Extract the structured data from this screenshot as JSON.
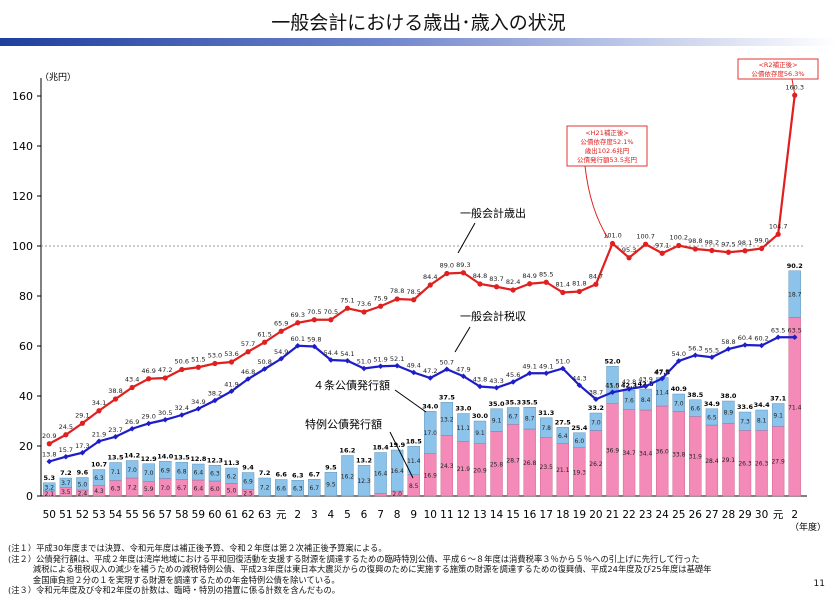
{
  "page": {
    "title": "一般会計における歳出･歳入の状況",
    "page_number": "11",
    "notes": [
      "(注１）平成30年度までは決算、令和元年度は補正後予算、令和２年度は第２次補正後予算案による。",
      "(注２）公債発行額は、平成２年度は湾岸地域における平和回復活動を支援する財源を調達するための臨時特別公債、平成６～８年度は消費税率３％から５％への引上げに先行して行った",
      "　　　減税による租税収入の減少を補うための減税特例公債、平成23年度は東日本大震災からの復興のために実施する施策の財源を調達するための復興債、平成24年度及び25年度は基礎年",
      "　　　金国庫負担２分の１を実現する財源を調達するための年金特例公債を除いている。",
      "(注３）令和元年度及び令和2年度の計数は、臨時・特別の措置に係る計数を含んだもの。"
    ]
  },
  "chart_data": {
    "type": "bar",
    "ylabel": "（兆円）",
    "xlabel": "（年度）",
    "ylim": [
      0,
      160
    ],
    "yticks": [
      0,
      20,
      40,
      60,
      80,
      100,
      120,
      140,
      160
    ],
    "categories": [
      "50",
      "51",
      "52",
      "53",
      "54",
      "55",
      "56",
      "57",
      "58",
      "59",
      "60",
      "61",
      "62",
      "63",
      "元",
      "2",
      "3",
      "4",
      "5",
      "6",
      "7",
      "8",
      "9",
      "10",
      "11",
      "12",
      "13",
      "14",
      "15",
      "16",
      "17",
      "18",
      "19",
      "20",
      "21",
      "22",
      "23",
      "24",
      "25",
      "26",
      "27",
      "28",
      "29",
      "30",
      "元",
      "2"
    ],
    "series": [
      {
        "name": "一般会計歳出",
        "kind": "line",
        "color": "#e0201f",
        "values": [
          20.9,
          24.5,
          29.1,
          34.1,
          38.8,
          43.4,
          46.9,
          47.2,
          50.6,
          51.5,
          53.0,
          53.6,
          57.7,
          61.5,
          65.9,
          69.3,
          70.5,
          70.5,
          75.1,
          73.6,
          75.9,
          78.8,
          78.5,
          84.4,
          89.0,
          89.3,
          84.8,
          83.7,
          82.4,
          84.9,
          85.5,
          81.4,
          81.8,
          84.7,
          101.0,
          95.3,
          100.7,
          97.1,
          100.2,
          98.8,
          98.2,
          97.5,
          98.1,
          99.0,
          104.7,
          160.3
        ]
      },
      {
        "name": "一般会計税収",
        "kind": "line",
        "color": "#1d1dc9",
        "values": [
          13.8,
          15.7,
          17.3,
          21.9,
          23.7,
          26.9,
          29.0,
          30.5,
          32.4,
          34.9,
          38.2,
          41.9,
          46.8,
          50.8,
          54.9,
          60.1,
          59.8,
          54.4,
          54.1,
          51.0,
          51.9,
          52.1,
          49.4,
          47.2,
          50.7,
          47.9,
          43.8,
          43.3,
          45.6,
          49.1,
          49.1,
          51.0,
          44.3,
          38.7,
          41.5,
          42.8,
          43.9,
          47.0,
          54.0,
          56.3,
          55.5,
          58.8,
          60.4,
          60.2,
          63.5,
          63.5
        ]
      },
      {
        "name": "特例公債発行額",
        "kind": "bar-bottom",
        "color": "#f48ab7",
        "values": [
          2.1,
          3.5,
          2.4,
          4.3,
          6.3,
          7.2,
          5.9,
          7.0,
          6.7,
          6.4,
          6.0,
          5.0,
          2.5,
          0.0,
          0.0,
          0.0,
          0.0,
          0.0,
          0.0,
          0.0,
          1.0,
          2.0,
          8.5,
          16.9,
          24.3,
          21.9,
          20.9,
          25.8,
          28.7,
          26.8,
          23.5,
          21.1,
          19.3,
          26.2,
          36.9,
          34.7,
          34.4,
          36.0,
          33.8,
          31.9,
          28.4,
          29.1,
          26.3,
          26.3,
          27.9,
          71.4
        ]
      },
      {
        "name": "４条公債発行額",
        "kind": "bar-top",
        "color": "#8cc3ea",
        "values": [
          3.2,
          3.7,
          5.0,
          6.3,
          7.1,
          7.0,
          7.0,
          6.9,
          6.8,
          6.4,
          6.3,
          6.2,
          6.9,
          7.2,
          6.6,
          6.3,
          6.7,
          9.5,
          16.2,
          12.3,
          16.4,
          16.4,
          11.4,
          17.0,
          13.2,
          11.1,
          9.1,
          9.1,
          6.7,
          8.7,
          7.8,
          6.4,
          6.0,
          7.0,
          15.0,
          7.6,
          8.4,
          11.4,
          7.0,
          6.6,
          6.5,
          8.9,
          7.3,
          8.1,
          9.1,
          18.7
        ]
      }
    ],
    "bond_totals": [
      5.3,
      7.2,
      9.6,
      10.7,
      13.5,
      14.2,
      12.9,
      14.0,
      13.5,
      12.8,
      12.3,
      11.3,
      9.4,
      7.2,
      6.6,
      6.3,
      6.7,
      9.5,
      16.2,
      13.2,
      18.4,
      19.9,
      18.5,
      34.0,
      37.5,
      33.0,
      30.0,
      35.0,
      35.3,
      35.5,
      31.3,
      27.5,
      25.4,
      33.2,
      52.0,
      42.3,
      42.8,
      47.5,
      40.9,
      38.5,
      34.9,
      38.0,
      33.6,
      34.4,
      37.1,
      90.2
    ],
    "annotations": [
      {
        "text": "一般会計歳出",
        "points_to": "spending line"
      },
      {
        "text": "一般会計税収",
        "points_to": "tax line"
      },
      {
        "text": "４条公債発行額",
        "points_to": "construction bond bars"
      },
      {
        "text": "特例公債発行額",
        "points_to": "deficit bond bars"
      },
      {
        "lines": [
          "<H21補正後>",
          "公債依存度52.1%",
          "歳出102.6兆円",
          "公債発行額53.5兆円"
        ],
        "year": "21"
      },
      {
        "lines": [
          "<R2補正後>",
          "公債依存度56.3%"
        ],
        "year": "2"
      }
    ],
    "reference_line": 100,
    "grid": false,
    "legend": "none"
  }
}
